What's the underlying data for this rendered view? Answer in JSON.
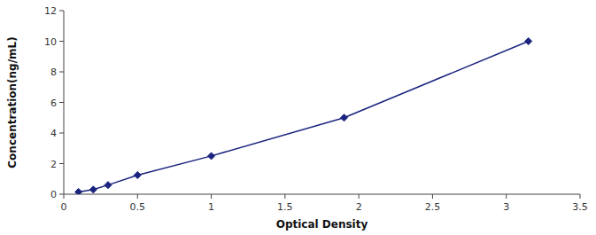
{
  "chart_data": {
    "type": "line",
    "x": [
      0.1,
      0.2,
      0.3,
      0.5,
      1.0,
      1.9,
      3.15
    ],
    "values": [
      0.15,
      0.3,
      0.6,
      1.25,
      2.5,
      5.0,
      10.0
    ],
    "color": "#1A237E",
    "marker": "diamond",
    "xlabel": "Optical Density",
    "ylabel": "Concentration(ng/mL)",
    "xlim": [
      0,
      3.5
    ],
    "ylim": [
      0,
      12
    ],
    "xticks": [
      0,
      0.5,
      1,
      1.5,
      2,
      2.5,
      3,
      3.5
    ],
    "yticks": [
      0,
      2,
      4,
      6,
      8,
      10,
      12
    ],
    "grid": false
  }
}
